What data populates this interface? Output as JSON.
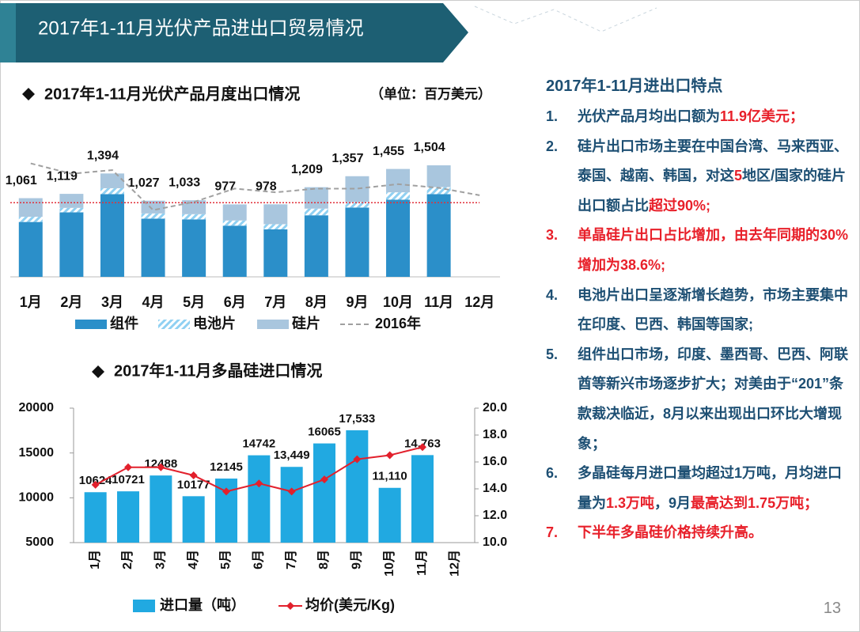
{
  "header": {
    "title": "2017年1-11月光伏产品进出口贸易情况"
  },
  "chart_data": [
    {
      "type": "stacked-bar",
      "title": "2017年1-11月光伏产品月度出口情况",
      "unit": "（单位：百万美元）",
      "categories": [
        "1月",
        "2月",
        "3月",
        "4月",
        "5月",
        "6月",
        "7月",
        "8月",
        "9月",
        "10月",
        "11月",
        "12月"
      ],
      "ylim": [
        0,
        1600
      ],
      "series": [
        {
          "name": "组件",
          "kind": "bar",
          "color": "#2b8fc9",
          "values": [
            740,
            870,
            1115,
            785,
            775,
            690,
            640,
            830,
            935,
            1040,
            1115,
            null
          ]
        },
        {
          "name": "电池片",
          "kind": "bar",
          "color": "#8fd0f2",
          "hatch": true,
          "values": [
            70,
            60,
            80,
            70,
            70,
            70,
            70,
            90,
            75,
            100,
            95,
            null
          ]
        },
        {
          "name": "硅片",
          "kind": "bar",
          "color": "#a9c6de",
          "values": [
            251,
            189,
            199,
            172,
            188,
            217,
            268,
            289,
            347,
            315,
            294,
            null
          ]
        },
        {
          "name": "2016年",
          "kind": "line",
          "color": "#a0a0a0",
          "dash": true,
          "values": [
            1530,
            1390,
            1440,
            900,
            1010,
            1190,
            1140,
            1190,
            1190,
            1250,
            1200,
            1100
          ]
        }
      ],
      "total_labels": [
        "1,061",
        "1,119",
        "1,394",
        "1,027",
        "1,033",
        "977",
        "978",
        "1,209",
        "1,357",
        "1,455",
        "1,504",
        null
      ],
      "reference_line": 1000,
      "reference_color": "#e0303a"
    },
    {
      "type": "bar-line",
      "title": "2017年1-11月多晶硅进口情况",
      "categories": [
        "1月",
        "2月",
        "3月",
        "4月",
        "5月",
        "6月",
        "7月",
        "8月",
        "9月",
        "10月",
        "11月",
        "12月"
      ],
      "ylim": [
        5000,
        20000
      ],
      "yticks": [
        5000,
        10000,
        15000,
        20000
      ],
      "y2lim": [
        10,
        20
      ],
      "y2ticks": [
        {
          "value": 10,
          "label": "10.0"
        },
        {
          "value": 12,
          "label": "12.0"
        },
        {
          "value": 14,
          "label": "14.0"
        },
        {
          "value": 16,
          "label": "16.0"
        },
        {
          "value": 18,
          "label": "18.0"
        },
        {
          "value": 20,
          "label": "20.0"
        }
      ],
      "series": [
        {
          "name": "进口量（吨）",
          "kind": "bar",
          "color": "#21a9e1",
          "values": [
            10624,
            10721,
            12488,
            10177,
            12145,
            14742,
            13449,
            16065,
            17533,
            11110,
            14763,
            null
          ],
          "value_labels": [
            "10624",
            "10721",
            "12488",
            "10177",
            "12145",
            "14742",
            "13,449",
            "16065",
            "17,533",
            "11,110",
            "14,763",
            null
          ]
        },
        {
          "name": "均价(美元/Kg)",
          "kind": "line",
          "axis": "y2",
          "color": "#e2202c",
          "values": [
            14.3,
            15.6,
            15.6,
            15.0,
            13.8,
            14.4,
            13.8,
            14.7,
            16.2,
            16.5,
            17.1,
            null
          ]
        }
      ]
    }
  ],
  "panel": {
    "title": "2017年1-11月进出口特点",
    "notes": [
      {
        "number": "1.",
        "runs": [
          {
            "text": "光伏产品月均出口额为"
          },
          {
            "text": "11.9亿美元；",
            "red": true
          }
        ]
      },
      {
        "number": "2.",
        "runs": [
          {
            "text": "硅片出口市场主要在中国台湾、马来西亚、泰国、越南、韩国，对这"
          },
          {
            "text": "5",
            "red": true
          },
          {
            "text": "地区/国家的硅片出口额占比"
          },
          {
            "text": "超过90%;",
            "red": true
          }
        ]
      },
      {
        "number": "3.",
        "red": true,
        "runs": [
          {
            "text": "单晶硅片出口占比增加，由去年同期的30%增加为38.6%;",
            "red": true
          }
        ]
      },
      {
        "number": "4.",
        "runs": [
          {
            "text": "电池片出口呈逐渐增长趋势，市场主要集中在印度、巴西、韩国等国家;"
          }
        ]
      },
      {
        "number": "5.",
        "runs": [
          {
            "text": "组件出口市场，印度、墨西哥、巴西、阿联酋等新兴市场逐步扩大；对美由于“201”条款裁决临近，8月以来出现出口环比大增现象；"
          }
        ]
      },
      {
        "number": "6.",
        "runs": [
          {
            "text": "多晶硅每月进口量均超过1万吨，月均进口量为"
          },
          {
            "text": "1.3万吨",
            "red": true
          },
          {
            "text": "，9月"
          },
          {
            "text": "最高达到1.75万吨；",
            "red": true
          }
        ]
      },
      {
        "number": "7.",
        "red": true,
        "runs": [
          {
            "text": "下半年多晶硅价格持续升高。",
            "red": true
          }
        ]
      }
    ]
  },
  "page_number": "13"
}
